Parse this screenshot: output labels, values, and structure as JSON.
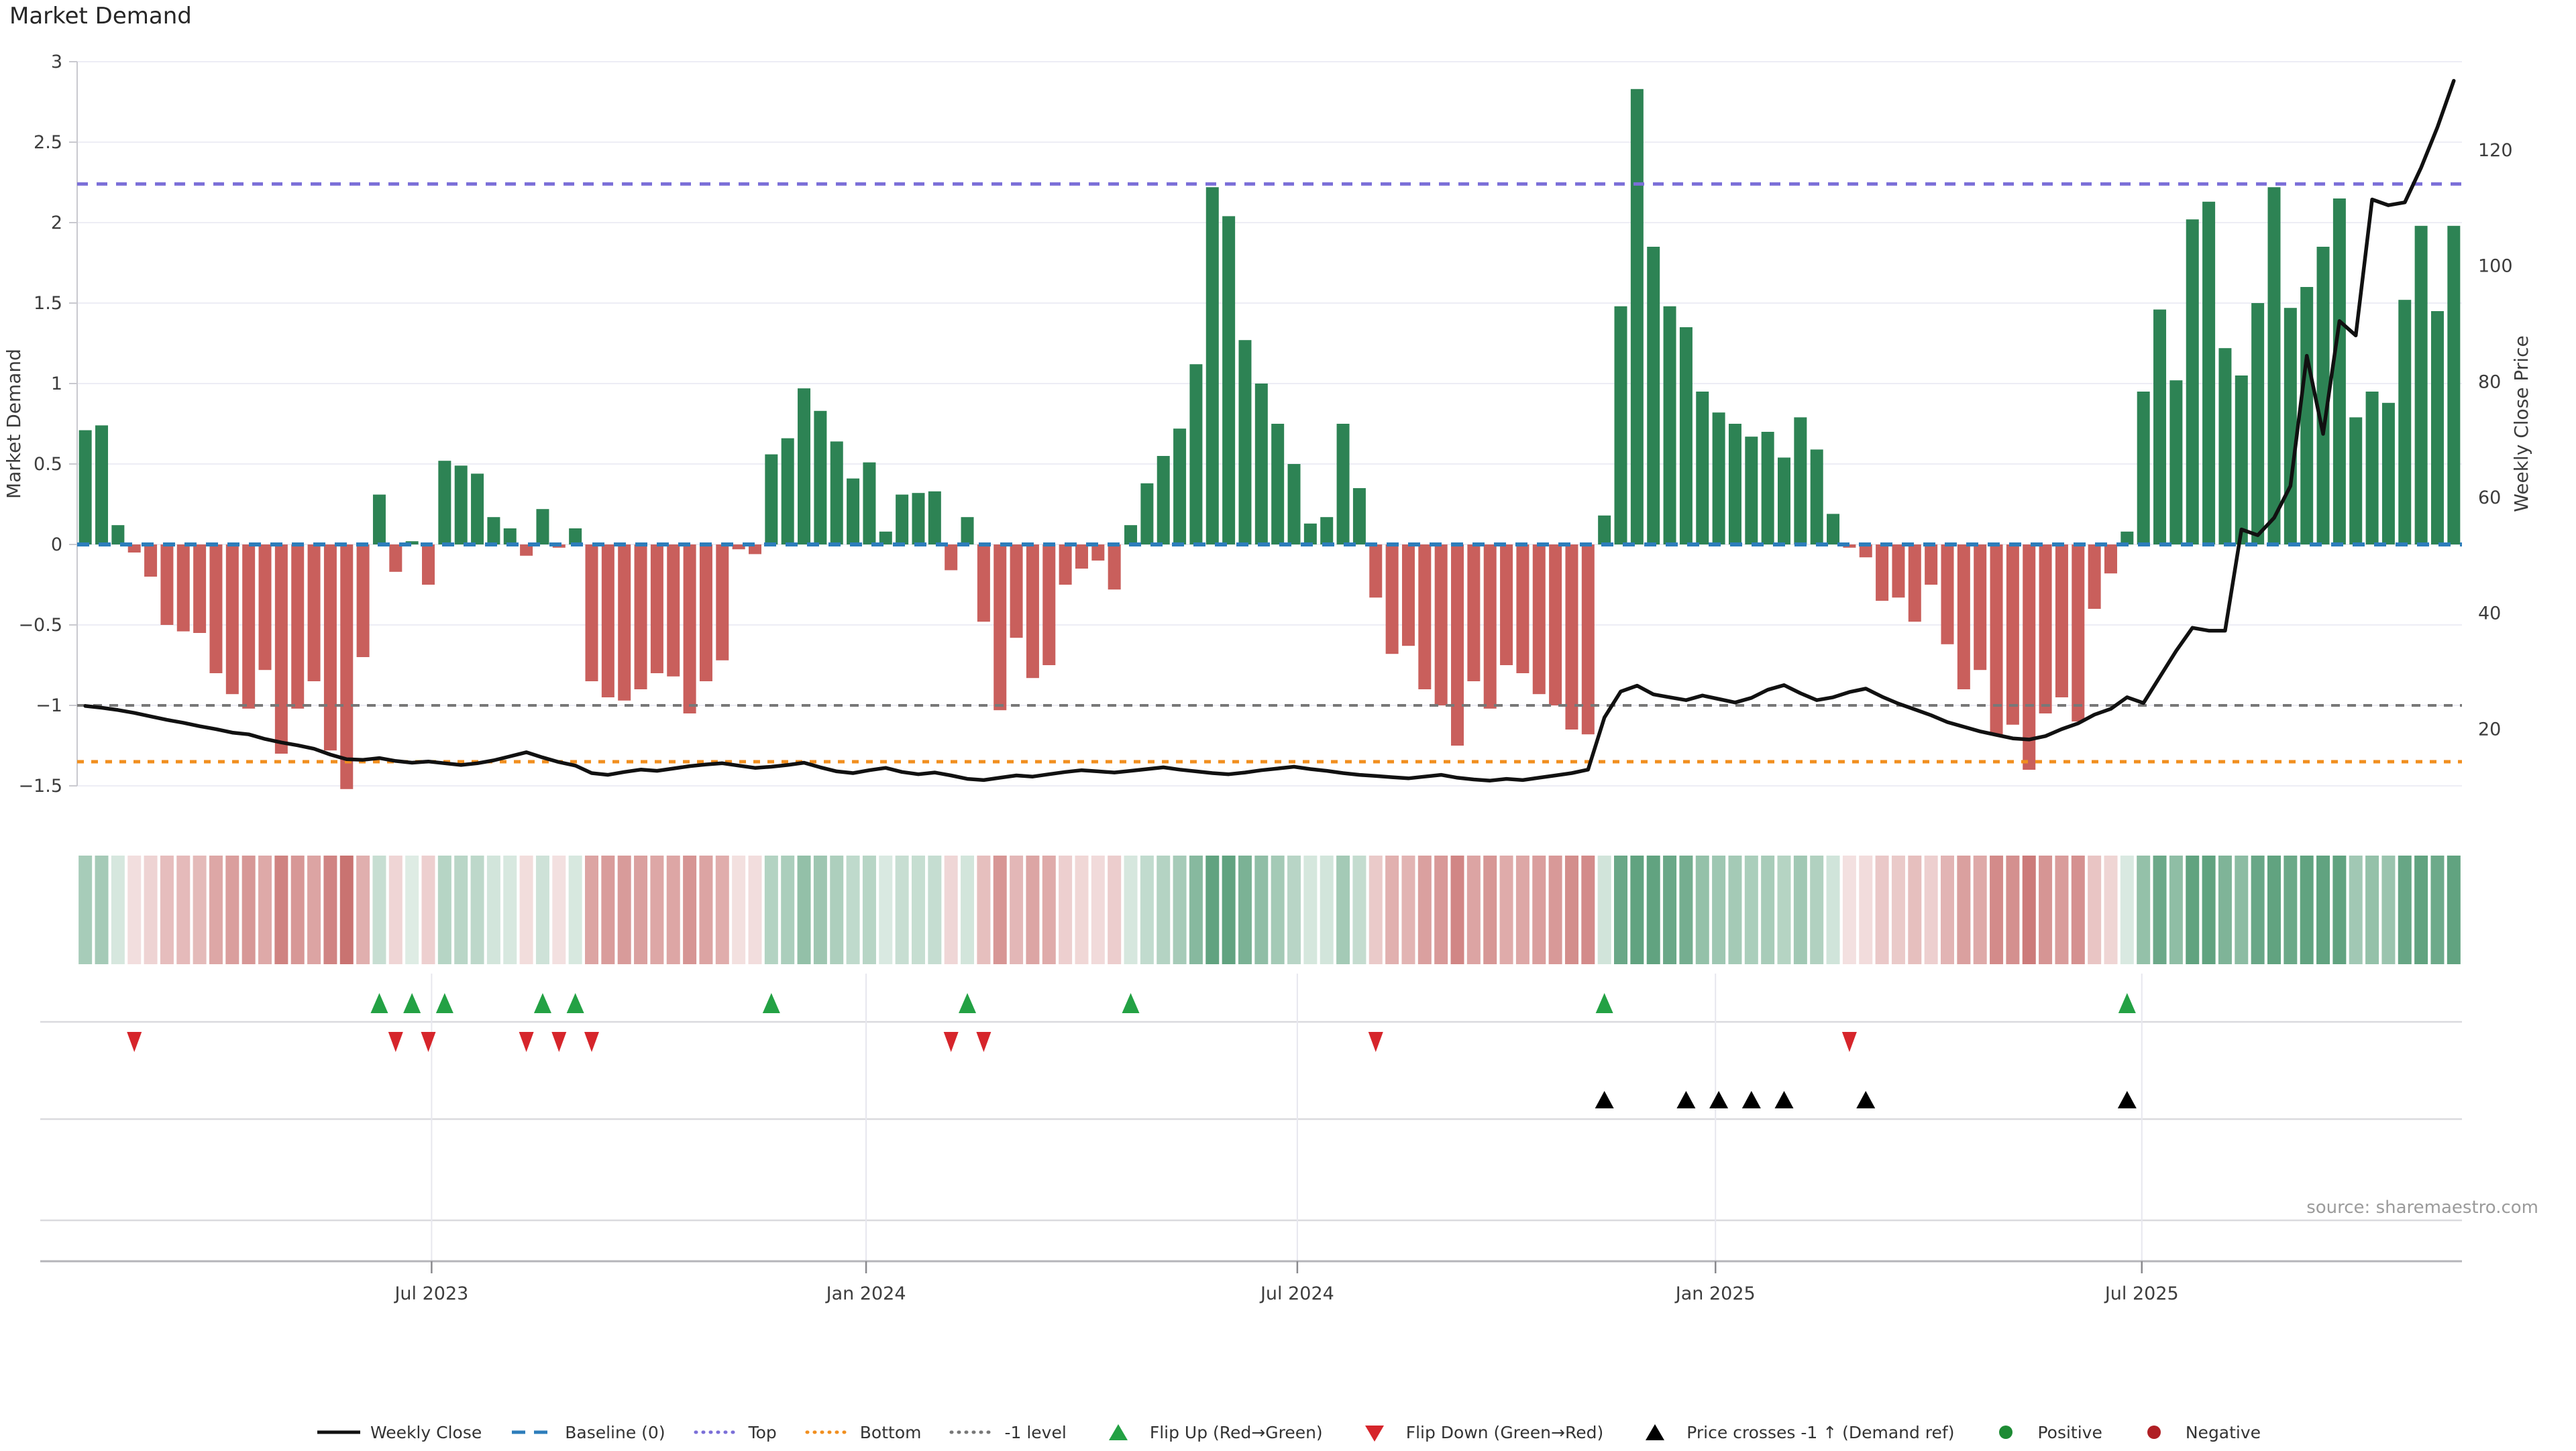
{
  "title": "Market Demand",
  "source": "source: sharemaestro.com",
  "axes": {
    "left_label": "Market Demand",
    "right_label": "Weekly Close Price",
    "left_ticks": [
      3,
      2.5,
      2,
      1.5,
      1,
      0.5,
      0,
      -0.5,
      -1,
      -1.5
    ],
    "right_ticks": [
      120,
      100,
      80,
      60,
      40,
      20
    ],
    "x_ticks": [
      {
        "label": "Jul 2023",
        "week": 21.2
      },
      {
        "label": "Jan 2024",
        "week": 47.8
      },
      {
        "label": "Jul 2024",
        "week": 74.2
      },
      {
        "label": "Jan 2025",
        "week": 99.8
      },
      {
        "label": "Jul 2025",
        "week": 125.9
      }
    ]
  },
  "chart_data": {
    "type": "bar+line",
    "title": "Market Demand",
    "x_unit": "weeks (Feb 2023 - Nov 2025)",
    "left_axis_range": [
      -1.5,
      3
    ],
    "right_axis_ticks": [
      20,
      120
    ],
    "grid": "horizontal-only",
    "series": [
      {
        "name": "Market Demand",
        "type": "bar",
        "axis": "left",
        "values": [
          0.71,
          0.74,
          0.12,
          -0.05,
          -0.2,
          -0.5,
          -0.54,
          -0.55,
          -0.8,
          -0.93,
          -1.02,
          -0.78,
          -1.3,
          -1.02,
          -0.85,
          -1.28,
          -1.52,
          -0.7,
          0.31,
          -0.17,
          0.02,
          -0.25,
          0.52,
          0.49,
          0.44,
          0.17,
          0.1,
          -0.07,
          0.22,
          -0.02,
          0.1,
          -0.85,
          -0.95,
          -0.97,
          -0.9,
          -0.8,
          -0.82,
          -1.05,
          -0.85,
          -0.72,
          -0.03,
          -0.06,
          0.56,
          0.66,
          0.97,
          0.83,
          0.64,
          0.41,
          0.51,
          0.08,
          0.31,
          0.32,
          0.33,
          -0.16,
          0.17,
          -0.48,
          -1.03,
          -0.58,
          -0.83,
          -0.75,
          -0.25,
          -0.15,
          -0.1,
          -0.28,
          0.12,
          0.38,
          0.55,
          0.72,
          1.12,
          2.22,
          2.04,
          1.27,
          1.0,
          0.75,
          0.5,
          0.13,
          0.17,
          0.75,
          0.35,
          -0.33,
          -0.68,
          -0.63,
          -0.9,
          -1.0,
          -1.25,
          -0.85,
          -1.02,
          -0.75,
          -0.8,
          -0.93,
          -1.0,
          -1.15,
          -1.18,
          0.18,
          1.48,
          2.83,
          1.85,
          1.48,
          1.35,
          0.95,
          0.82,
          0.75,
          0.67,
          0.7,
          0.54,
          0.79,
          0.59,
          0.19,
          -0.02,
          -0.08,
          -0.35,
          -0.33,
          -0.48,
          -0.25,
          -0.62,
          -0.9,
          -0.78,
          -1.18,
          -1.12,
          -1.4,
          -1.05,
          -0.95,
          -1.1,
          -0.4,
          -0.18,
          0.08,
          0.95,
          1.46,
          1.02,
          2.02,
          2.13,
          1.22,
          1.05,
          1.5,
          2.22,
          1.47,
          1.6,
          1.85,
          2.15,
          0.79,
          0.95,
          0.88,
          1.52,
          1.98,
          1.45,
          1.98
        ]
      },
      {
        "name": "Weekly Close",
        "type": "line",
        "axis": "right",
        "values": [
          24.0,
          23.7,
          23.3,
          22.8,
          22.2,
          21.6,
          21.1,
          20.5,
          20.0,
          19.4,
          19.1,
          18.3,
          17.7,
          17.2,
          16.6,
          15.6,
          14.8,
          14.7,
          15.0,
          14.5,
          14.2,
          14.4,
          14.1,
          13.8,
          14.1,
          14.6,
          15.3,
          16.0,
          15.1,
          14.3,
          13.7,
          12.4,
          12.1,
          12.6,
          13.0,
          12.8,
          13.2,
          13.6,
          13.9,
          14.1,
          13.7,
          13.3,
          13.5,
          13.8,
          14.2,
          13.4,
          12.7,
          12.4,
          12.9,
          13.3,
          12.6,
          12.2,
          12.5,
          12.0,
          11.4,
          11.2,
          11.6,
          12.0,
          11.8,
          12.2,
          12.6,
          12.9,
          12.7,
          12.5,
          12.8,
          13.1,
          13.4,
          13.0,
          12.7,
          12.4,
          12.2,
          12.5,
          12.9,
          13.2,
          13.5,
          13.1,
          12.8,
          12.4,
          12.1,
          11.9,
          11.7,
          11.5,
          11.8,
          12.1,
          11.6,
          11.3,
          11.1,
          11.4,
          11.2,
          11.6,
          12.0,
          12.4,
          13.0,
          22.0,
          26.5,
          27.5,
          26.0,
          25.5,
          25.0,
          25.8,
          25.2,
          24.6,
          25.4,
          26.8,
          27.6,
          26.2,
          25.0,
          25.5,
          26.4,
          27.0,
          25.6,
          24.4,
          23.4,
          22.4,
          21.2,
          20.4,
          19.6,
          19.0,
          18.4,
          18.2,
          18.8,
          20.0,
          21.0,
          22.5,
          23.5,
          25.5,
          24.5,
          29.0,
          33.5,
          37.5,
          37.0,
          37.0,
          54.5,
          53.5,
          56.5,
          62.0,
          84.5,
          71.0,
          90.5,
          88.0,
          111.5,
          110.5,
          111.0,
          117.0,
          124.0,
          132.0
        ]
      }
    ],
    "reference_lines": {
      "baseline": 0,
      "top": 2.24,
      "bottom": -1.35,
      "minus_one": -1.0
    },
    "right_axis_mapping": {
      "price_at_zero": 51.9,
      "price_per_unit": 27.8
    },
    "markers": {
      "flip_up_weeks": [
        18,
        20,
        22,
        28,
        30,
        42,
        54,
        64,
        93,
        125
      ],
      "flip_down_weeks": [
        3,
        19,
        21,
        27,
        29,
        31,
        53,
        55,
        79,
        108
      ],
      "price_cross_weeks": [
        93,
        98,
        100,
        102,
        104,
        109,
        125
      ]
    },
    "heatmap": {
      "description": "weekly demand sign/intensity strip",
      "positive_color": "#2c8456",
      "negative_color": "#b43c3a"
    }
  },
  "legend": {
    "items": [
      {
        "label": "Weekly Close",
        "swatch": "line-solid",
        "color": "#111111"
      },
      {
        "label": "Baseline (0)",
        "swatch": "line-dashed",
        "color": "#2d7dbb"
      },
      {
        "label": "Top",
        "swatch": "line-dotted",
        "color": "#7b6fd8"
      },
      {
        "label": "Bottom",
        "swatch": "line-dotted",
        "color": "#f18f1f"
      },
      {
        "label": "-1 level",
        "swatch": "line-dotted",
        "color": "#787878"
      },
      {
        "label": "Flip Up (Red→Green)",
        "swatch": "tri-up",
        "color": "#23a144"
      },
      {
        "label": "Flip Down (Green→Red)",
        "swatch": "tri-down",
        "color": "#d6252b"
      },
      {
        "label": "Price crosses -1 ↑ (Demand ref)",
        "swatch": "tri-up",
        "color": "#000000"
      },
      {
        "label": "Positive",
        "swatch": "dot",
        "color": "#1d8b34"
      },
      {
        "label": "Negative",
        "swatch": "dot",
        "color": "#b01f24"
      }
    ]
  },
  "colors": {
    "bar_positive": "#2d8354",
    "bar_negative": "#c95f5c",
    "price_line": "#111111",
    "baseline": "#2d7dbb",
    "top_line": "#7b6fd8",
    "bottom_line": "#f18f1f",
    "minus_one_line": "#787878",
    "grid": "#ededf5",
    "axis_text": "#3d3d3d",
    "spine": "#c9c9cf",
    "separator": "#dadade",
    "axis_line": "#b5b5ba",
    "vgrid": "#e7e7ee",
    "flip_up": "#23a144",
    "flip_down": "#d6252b",
    "price_cross": "#000000"
  }
}
